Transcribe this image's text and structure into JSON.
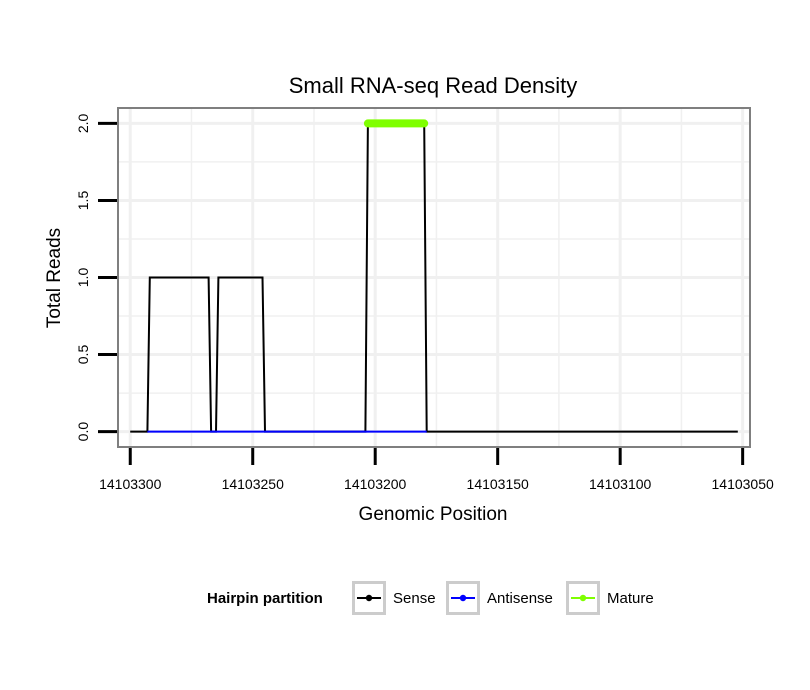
{
  "chart_data": {
    "type": "line",
    "title": "Small RNA-seq Read Density",
    "xlabel": "Genomic Position",
    "ylabel": "Total Reads",
    "xlim": [
      14103305,
      14103047
    ],
    "ylim": [
      -0.1,
      2.1
    ],
    "x_reversed": true,
    "x_ticks": [
      14103300,
      14103250,
      14103200,
      14103150,
      14103100,
      14103050
    ],
    "x_tick_labels": [
      "14103300",
      "14103250",
      "14103200",
      "14103150",
      "14103100",
      "14103050"
    ],
    "y_ticks": [
      0,
      0.5,
      1,
      1.5,
      2
    ],
    "y_tick_labels": [
      "0.0",
      "0.5",
      "1.0",
      "1.5",
      "2.0"
    ],
    "grid": true,
    "legend_position": "bottom",
    "series": [
      {
        "name": "Sense",
        "color": "#000000",
        "x": [
          14103300,
          14103293,
          14103292,
          14103268,
          14103267,
          14103265,
          14103264,
          14103246,
          14103245,
          14103204,
          14103203,
          14103180,
          14103179,
          14103052
        ],
        "y": [
          0,
          0,
          1,
          1,
          0,
          0,
          1,
          1,
          0,
          0,
          2,
          2,
          0,
          0
        ]
      },
      {
        "name": "Antisense",
        "color": "#0000ff",
        "x": [
          14103293,
          14103179
        ],
        "y": [
          0,
          0
        ]
      },
      {
        "name": "Mature",
        "color": "#7fff00",
        "x": [
          14103203,
          14103180
        ],
        "y": [
          2,
          2
        ]
      }
    ]
  },
  "legend": {
    "title": "Hairpin partition",
    "items": [
      {
        "label": "Sense",
        "color": "#000000"
      },
      {
        "label": "Antisense",
        "color": "#0000ff"
      },
      {
        "label": "Mature",
        "color": "#7fff00"
      }
    ]
  }
}
